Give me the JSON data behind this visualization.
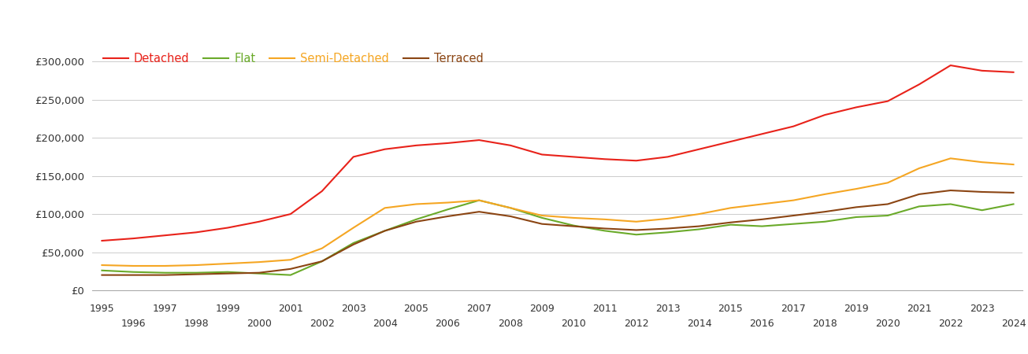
{
  "years": [
    1995,
    1996,
    1997,
    1998,
    1999,
    2000,
    2001,
    2002,
    2003,
    2004,
    2005,
    2006,
    2007,
    2008,
    2009,
    2010,
    2011,
    2012,
    2013,
    2014,
    2015,
    2016,
    2017,
    2018,
    2019,
    2020,
    2021,
    2022,
    2023,
    2024
  ],
  "detached": [
    65000,
    68000,
    72000,
    76000,
    82000,
    90000,
    100000,
    130000,
    175000,
    185000,
    190000,
    193000,
    197000,
    190000,
    178000,
    175000,
    172000,
    170000,
    175000,
    185000,
    195000,
    205000,
    215000,
    230000,
    240000,
    248000,
    270000,
    295000,
    288000,
    286000
  ],
  "flat": [
    26000,
    24000,
    23000,
    23000,
    24000,
    22000,
    20000,
    38000,
    62000,
    78000,
    93000,
    106000,
    118000,
    108000,
    95000,
    85000,
    78000,
    73000,
    76000,
    80000,
    86000,
    84000,
    87000,
    90000,
    96000,
    98000,
    110000,
    113000,
    105000,
    113000
  ],
  "semi_detached": [
    33000,
    32000,
    32000,
    33000,
    35000,
    37000,
    40000,
    55000,
    82000,
    108000,
    113000,
    115000,
    118000,
    108000,
    98000,
    95000,
    93000,
    90000,
    94000,
    100000,
    108000,
    113000,
    118000,
    126000,
    133000,
    141000,
    160000,
    173000,
    168000,
    165000
  ],
  "terraced": [
    20000,
    20000,
    20000,
    21000,
    22000,
    23000,
    28000,
    38000,
    60000,
    78000,
    90000,
    97000,
    103000,
    97000,
    87000,
    84000,
    81000,
    79000,
    81000,
    84000,
    89000,
    93000,
    98000,
    103000,
    109000,
    113000,
    126000,
    131000,
    129000,
    128000
  ],
  "colors": {
    "detached": "#e8221a",
    "flat": "#6aaa2a",
    "semi_detached": "#f5a623",
    "terraced": "#8B4513"
  },
  "ylim": [
    0,
    325000
  ],
  "yticks": [
    0,
    50000,
    100000,
    150000,
    200000,
    250000,
    300000
  ],
  "background_color": "#ffffff",
  "grid_color": "#cccccc",
  "line_width": 1.5
}
